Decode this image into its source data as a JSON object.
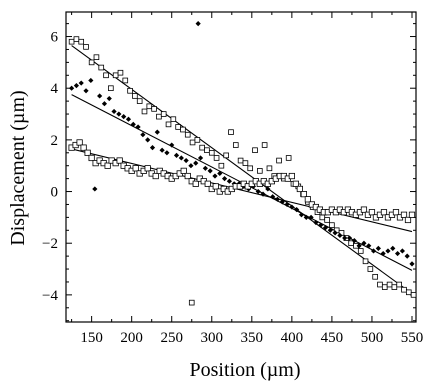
{
  "chart_data": {
    "type": "scatter",
    "title": "",
    "xlabel": "Position (µm)",
    "ylabel": "Displacement (µm)",
    "xlim": [
      118,
      555
    ],
    "ylim": [
      -5.05,
      6.95
    ],
    "x_ticks": [
      150,
      200,
      250,
      300,
      350,
      400,
      450,
      500,
      550
    ],
    "y_ticks": [
      -4,
      -2,
      0,
      2,
      4,
      6
    ],
    "grid": false,
    "legend": "none",
    "series": [
      {
        "marker": "open-square",
        "points": [
          [
            125,
            5.8
          ],
          [
            131,
            5.9
          ],
          [
            137,
            5.8
          ],
          [
            143,
            5.6
          ],
          [
            150,
            5.0
          ],
          [
            156,
            5.2
          ],
          [
            162,
            4.8
          ],
          [
            168,
            4.5
          ],
          [
            174,
            4.0
          ],
          [
            180,
            4.5
          ],
          [
            186,
            4.6
          ],
          [
            192,
            4.3
          ],
          [
            198,
            3.9
          ],
          [
            204,
            3.7
          ],
          [
            210,
            3.5
          ],
          [
            216,
            3.1
          ],
          [
            222,
            3.3
          ],
          [
            228,
            3.2
          ],
          [
            234,
            2.9
          ],
          [
            240,
            3.0
          ],
          [
            246,
            2.6
          ],
          [
            252,
            2.8
          ],
          [
            258,
            2.5
          ],
          [
            264,
            2.4
          ],
          [
            270,
            2.2
          ],
          [
            276,
            1.9
          ],
          [
            282,
            2.0
          ],
          [
            288,
            1.7
          ],
          [
            294,
            1.6
          ],
          [
            300,
            1.5
          ],
          [
            306,
            1.3
          ],
          [
            312,
            1.0
          ],
          [
            318,
            1.4
          ],
          [
            324,
            2.3
          ],
          [
            330,
            1.8
          ],
          [
            336,
            1.2
          ],
          [
            342,
            1.1
          ],
          [
            348,
            0.9
          ],
          [
            354,
            1.6
          ],
          [
            360,
            0.8
          ],
          [
            366,
            1.8
          ],
          [
            372,
            0.9
          ],
          [
            378,
            0.6
          ],
          [
            384,
            1.2
          ],
          [
            390,
            0.5
          ],
          [
            396,
            1.3
          ],
          [
            402,
            0.3
          ],
          [
            408,
            0.2
          ],
          [
            414,
            -0.1
          ],
          [
            420,
            -0.4
          ],
          [
            426,
            -0.6
          ],
          [
            432,
            -0.8
          ],
          [
            438,
            -1.0
          ],
          [
            444,
            -1.1
          ],
          [
            450,
            -1.3
          ],
          [
            456,
            -1.5
          ],
          [
            462,
            -1.6
          ],
          [
            468,
            -1.8
          ],
          [
            474,
            -2.0
          ],
          [
            480,
            -2.1
          ],
          [
            486,
            -2.3
          ],
          [
            492,
            -2.7
          ],
          [
            498,
            -3.0
          ],
          [
            504,
            -3.3
          ],
          [
            510,
            -3.6
          ],
          [
            516,
            -3.7
          ],
          [
            522,
            -3.6
          ],
          [
            528,
            -3.7
          ],
          [
            534,
            -3.6
          ],
          [
            540,
            -3.8
          ],
          [
            546,
            -3.9
          ],
          [
            552,
            -4.0
          ],
          [
            275,
            -4.3
          ]
        ]
      },
      {
        "marker": "filled-diamond",
        "points": [
          [
            125,
            4.0
          ],
          [
            131,
            4.1
          ],
          [
            137,
            4.2
          ],
          [
            143,
            3.9
          ],
          [
            149,
            4.3
          ],
          [
            154,
            0.1
          ],
          [
            160,
            3.7
          ],
          [
            166,
            3.4
          ],
          [
            172,
            3.6
          ],
          [
            178,
            3.1
          ],
          [
            184,
            3.0
          ],
          [
            190,
            2.9
          ],
          [
            196,
            2.8
          ],
          [
            202,
            2.6
          ],
          [
            208,
            2.5
          ],
          [
            214,
            2.2
          ],
          [
            220,
            2.0
          ],
          [
            226,
            1.7
          ],
          [
            232,
            2.3
          ],
          [
            238,
            1.6
          ],
          [
            244,
            1.5
          ],
          [
            250,
            1.8
          ],
          [
            256,
            1.4
          ],
          [
            262,
            1.3
          ],
          [
            268,
            1.2
          ],
          [
            274,
            1.0
          ],
          [
            280,
            1.1
          ],
          [
            286,
            1.3
          ],
          [
            292,
            0.9
          ],
          [
            298,
            0.8
          ],
          [
            304,
            0.6
          ],
          [
            310,
            0.7
          ],
          [
            316,
            0.5
          ],
          [
            322,
            0.4
          ],
          [
            328,
            0.3
          ],
          [
            334,
            0.3
          ],
          [
            340,
            0.2
          ],
          [
            346,
            0.1
          ],
          [
            352,
            0.2
          ],
          [
            358,
            0.0
          ],
          [
            364,
            -0.1
          ],
          [
            370,
            0.1
          ],
          [
            376,
            -0.2
          ],
          [
            382,
            -0.3
          ],
          [
            388,
            -0.4
          ],
          [
            394,
            -0.5
          ],
          [
            400,
            -0.6
          ],
          [
            406,
            -0.7
          ],
          [
            412,
            -0.9
          ],
          [
            418,
            -1.0
          ],
          [
            424,
            -1.0
          ],
          [
            430,
            -1.2
          ],
          [
            436,
            -1.3
          ],
          [
            442,
            -1.4
          ],
          [
            448,
            -1.5
          ],
          [
            454,
            -1.6
          ],
          [
            460,
            -1.7
          ],
          [
            466,
            -1.8
          ],
          [
            472,
            -1.8
          ],
          [
            478,
            -1.9
          ],
          [
            484,
            -2.1
          ],
          [
            490,
            -2.0
          ],
          [
            496,
            -2.1
          ],
          [
            502,
            -2.3
          ],
          [
            508,
            -2.2
          ],
          [
            514,
            -2.4
          ],
          [
            520,
            -2.3
          ],
          [
            526,
            -2.2
          ],
          [
            532,
            -2.4
          ],
          [
            538,
            -2.3
          ],
          [
            544,
            -2.5
          ],
          [
            550,
            -2.8
          ],
          [
            283,
            6.5
          ]
        ]
      },
      {
        "marker": "open-square-small",
        "points": [
          [
            125,
            1.7
          ],
          [
            130,
            1.8
          ],
          [
            135,
            1.9
          ],
          [
            140,
            1.7
          ],
          [
            145,
            1.5
          ],
          [
            150,
            1.3
          ],
          [
            155,
            1.1
          ],
          [
            160,
            1.2
          ],
          [
            165,
            1.1
          ],
          [
            170,
            1.0
          ],
          [
            175,
            1.2
          ],
          [
            180,
            1.1
          ],
          [
            185,
            1.2
          ],
          [
            190,
            1.0
          ],
          [
            195,
            0.9
          ],
          [
            200,
            0.8
          ],
          [
            205,
            0.9
          ],
          [
            210,
            0.7
          ],
          [
            215,
            0.8
          ],
          [
            220,
            0.9
          ],
          [
            225,
            0.7
          ],
          [
            230,
            0.6
          ],
          [
            235,
            0.8
          ],
          [
            240,
            0.7
          ],
          [
            245,
            0.6
          ],
          [
            250,
            0.5
          ],
          [
            255,
            0.6
          ],
          [
            260,
            0.7
          ],
          [
            265,
            0.8
          ],
          [
            270,
            0.6
          ],
          [
            275,
            0.4
          ],
          [
            280,
            0.3
          ],
          [
            285,
            0.5
          ],
          [
            290,
            0.4
          ],
          [
            295,
            0.3
          ],
          [
            300,
            0.1
          ],
          [
            305,
            0.2
          ],
          [
            310,
            0.0
          ],
          [
            315,
            0.1
          ],
          [
            320,
            0.0
          ],
          [
            325,
            0.1
          ],
          [
            330,
            0.2
          ],
          [
            335,
            0.2
          ],
          [
            340,
            0.3
          ],
          [
            345,
            0.2
          ],
          [
            350,
            0.3
          ],
          [
            355,
            0.4
          ],
          [
            360,
            0.3
          ],
          [
            365,
            0.4
          ],
          [
            370,
            0.3
          ],
          [
            375,
            0.4
          ],
          [
            380,
            0.5
          ],
          [
            385,
            0.6
          ],
          [
            390,
            0.6
          ],
          [
            395,
            0.5
          ],
          [
            400,
            0.6
          ],
          [
            405,
            0.3
          ],
          [
            410,
            0.1
          ],
          [
            415,
            -0.1
          ],
          [
            420,
            -0.3
          ],
          [
            425,
            -0.5
          ],
          [
            430,
            -0.6
          ],
          [
            435,
            -0.7
          ],
          [
            440,
            -0.8
          ],
          [
            445,
            -0.8
          ],
          [
            450,
            -0.7
          ],
          [
            455,
            -0.8
          ],
          [
            460,
            -0.7
          ],
          [
            465,
            -0.8
          ],
          [
            470,
            -0.7
          ],
          [
            475,
            -0.8
          ],
          [
            480,
            -0.9
          ],
          [
            485,
            -0.8
          ],
          [
            490,
            -0.7
          ],
          [
            495,
            -0.9
          ],
          [
            500,
            -0.8
          ],
          [
            505,
            -1.0
          ],
          [
            510,
            -0.9
          ],
          [
            515,
            -0.8
          ],
          [
            520,
            -1.0
          ],
          [
            525,
            -0.9
          ],
          [
            530,
            -0.8
          ],
          [
            535,
            -1.0
          ],
          [
            540,
            -0.9
          ],
          [
            545,
            -1.1
          ],
          [
            550,
            -0.9
          ]
        ]
      }
    ],
    "fit_lines": [
      {
        "x": [
          125,
          550
        ],
        "y": [
          5.65,
          -3.95
        ]
      },
      {
        "x": [
          125,
          550
        ],
        "y": [
          3.75,
          -3.05
        ]
      },
      {
        "x": [
          125,
          550
        ],
        "y": [
          1.65,
          -1.55
        ]
      }
    ]
  }
}
